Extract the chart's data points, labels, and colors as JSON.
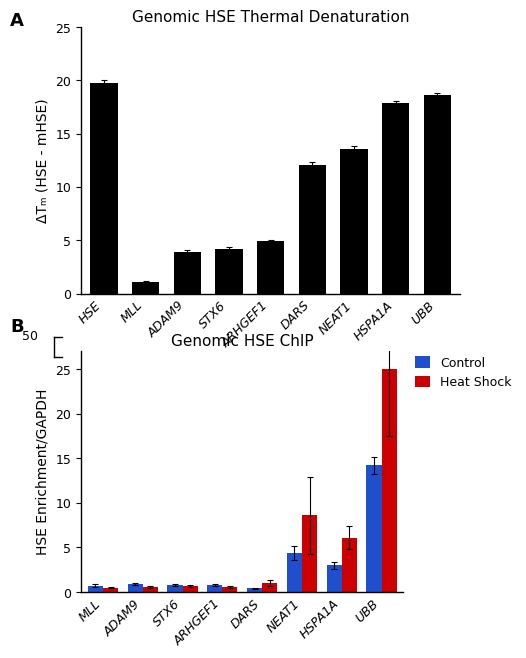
{
  "panel_A": {
    "title": "Genomic HSE Thermal Denaturation",
    "ylabel": "ΔTₘ (HSE - mHSE)",
    "categories": [
      "HSE",
      "MLL",
      "ADAM9",
      "STX6",
      "ARHGEF1",
      "DARS",
      "NEAT1",
      "HSPA1A",
      "UBB"
    ],
    "values": [
      19.8,
      1.1,
      3.9,
      4.2,
      4.9,
      12.1,
      13.6,
      17.9,
      18.6
    ],
    "errors": [
      0.2,
      0.1,
      0.15,
      0.15,
      0.15,
      0.2,
      0.2,
      0.15,
      0.2
    ],
    "bar_color": "#000000",
    "ylim": [
      0,
      25
    ],
    "yticks": [
      0,
      5,
      10,
      15,
      20,
      25
    ]
  },
  "panel_B": {
    "title": "Genomic HSE ChIP",
    "ylabel": "HSE Enrichment/GAPDH",
    "categories": [
      "MLL",
      "ADAM9",
      "STX6",
      "ARHGEF1",
      "DARS",
      "NEAT1",
      "HSPA1A",
      "UBB"
    ],
    "control_values": [
      0.7,
      0.9,
      0.8,
      0.8,
      0.4,
      4.4,
      3.0,
      14.2
    ],
    "heatshock_values": [
      0.5,
      0.6,
      0.7,
      0.6,
      1.0,
      8.6,
      6.1,
      25.0
    ],
    "control_errors": [
      0.15,
      0.1,
      0.1,
      0.1,
      0.1,
      0.8,
      0.4,
      1.0
    ],
    "heatshock_errors": [
      0.1,
      0.1,
      0.1,
      0.1,
      0.3,
      4.3,
      1.3,
      7.5
    ],
    "control_color": "#1f4fcc",
    "heatshock_color": "#cc0000",
    "ylim": [
      0,
      27
    ],
    "yticks": [
      0,
      5,
      10,
      15,
      20,
      25
    ],
    "legend_labels": [
      "Control",
      "Heat Shock"
    ]
  },
  "label_fontsize": 10,
  "tick_fontsize": 9,
  "title_fontsize": 11,
  "panel_label_fontsize": 13
}
